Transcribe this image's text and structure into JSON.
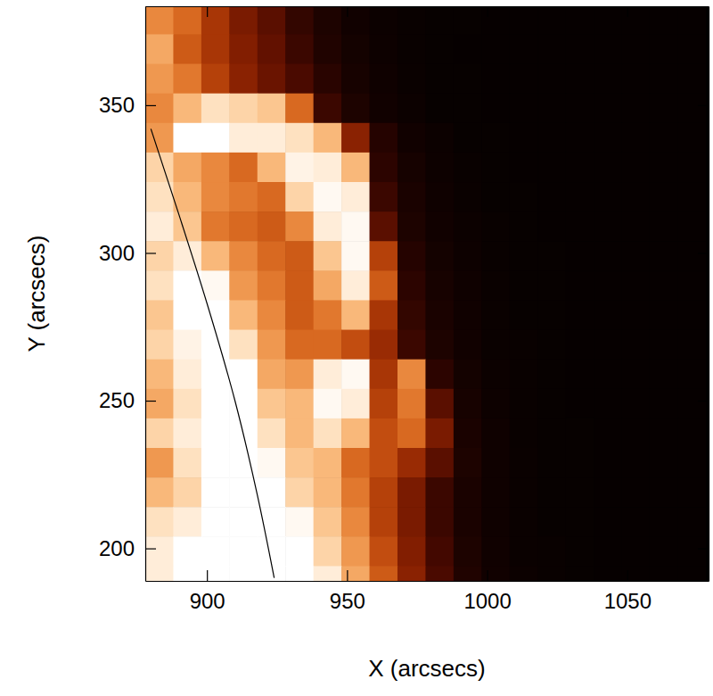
{
  "chart_data": {
    "type": "heatmap",
    "x_label": "X (arcsecs)",
    "y_label": "Y (arcsecs)",
    "xlim": [
      878,
      1079
    ],
    "ylim": [
      189,
      383.5
    ],
    "xticks": [
      900,
      950,
      1000,
      1050
    ],
    "yticks": [
      200,
      250,
      300,
      350
    ],
    "zlim": [
      0,
      255
    ],
    "x": [
      883,
      893,
      903,
      913,
      923,
      933,
      943,
      953,
      963,
      973,
      983,
      993,
      1003,
      1013,
      1023,
      1033,
      1043,
      1053,
      1063,
      1073
    ],
    "y": [
      379,
      369,
      359,
      349,
      339,
      329,
      319,
      309,
      299,
      289,
      279,
      269,
      259,
      249,
      239,
      229,
      219,
      209,
      199,
      189
    ],
    "z": [
      [
        170,
        150,
        110,
        80,
        60,
        35,
        20,
        12,
        8,
        6,
        5,
        5,
        4,
        4,
        4,
        4,
        4,
        4,
        4,
        4
      ],
      [
        190,
        140,
        110,
        85,
        65,
        40,
        22,
        14,
        9,
        6,
        5,
        4,
        4,
        4,
        4,
        4,
        4,
        4,
        4,
        4
      ],
      [
        180,
        160,
        120,
        90,
        70,
        50,
        28,
        16,
        10,
        7,
        5,
        5,
        4,
        4,
        4,
        4,
        4,
        4,
        4,
        4
      ],
      [
        170,
        200,
        230,
        220,
        210,
        150,
        40,
        20,
        12,
        8,
        5,
        5,
        4,
        4,
        4,
        4,
        4,
        4,
        4,
        4
      ],
      [
        180,
        255,
        255,
        240,
        240,
        230,
        200,
        90,
        25,
        12,
        8,
        5,
        5,
        4,
        4,
        4,
        4,
        4,
        4,
        4
      ],
      [
        220,
        190,
        170,
        150,
        200,
        245,
        240,
        200,
        30,
        15,
        9,
        6,
        5,
        4,
        4,
        4,
        4,
        4,
        4,
        4
      ],
      [
        230,
        200,
        170,
        160,
        150,
        220,
        250,
        240,
        40,
        18,
        10,
        7,
        5,
        5,
        4,
        4,
        4,
        4,
        4,
        4
      ],
      [
        240,
        210,
        160,
        150,
        140,
        170,
        240,
        250,
        60,
        20,
        12,
        8,
        6,
        5,
        4,
        4,
        4,
        4,
        4,
        4
      ],
      [
        220,
        240,
        200,
        170,
        150,
        140,
        210,
        250,
        120,
        25,
        14,
        9,
        6,
        5,
        5,
        4,
        4,
        4,
        4,
        4
      ],
      [
        230,
        255,
        250,
        180,
        160,
        140,
        190,
        240,
        140,
        30,
        16,
        10,
        7,
        5,
        5,
        4,
        4,
        4,
        4,
        4
      ],
      [
        210,
        255,
        255,
        200,
        170,
        140,
        160,
        200,
        110,
        35,
        18,
        11,
        7,
        5,
        5,
        4,
        4,
        4,
        4,
        4
      ],
      [
        220,
        245,
        255,
        230,
        180,
        150,
        150,
        130,
        100,
        40,
        20,
        12,
        7,
        6,
        5,
        4,
        4,
        4,
        4,
        4
      ],
      [
        200,
        240,
        255,
        255,
        190,
        180,
        240,
        250,
        110,
        170,
        30,
        14,
        8,
        6,
        5,
        4,
        4,
        4,
        4,
        4
      ],
      [
        190,
        230,
        255,
        255,
        210,
        200,
        250,
        240,
        120,
        160,
        60,
        16,
        9,
        6,
        5,
        4,
        4,
        4,
        4,
        4
      ],
      [
        220,
        240,
        255,
        255,
        230,
        200,
        230,
        200,
        130,
        150,
        80,
        18,
        10,
        6,
        5,
        5,
        4,
        4,
        4,
        4
      ],
      [
        180,
        230,
        255,
        255,
        250,
        210,
        200,
        150,
        130,
        100,
        60,
        20,
        10,
        7,
        5,
        5,
        4,
        4,
        4,
        4
      ],
      [
        200,
        220,
        255,
        255,
        255,
        220,
        200,
        160,
        120,
        80,
        40,
        18,
        10,
        7,
        5,
        5,
        4,
        4,
        4,
        4
      ],
      [
        230,
        240,
        255,
        255,
        255,
        250,
        210,
        170,
        120,
        80,
        40,
        18,
        10,
        7,
        5,
        5,
        4,
        4,
        4,
        4
      ],
      [
        240,
        255,
        255,
        255,
        255,
        255,
        220,
        180,
        130,
        85,
        45,
        20,
        11,
        7,
        6,
        5,
        4,
        4,
        4,
        4
      ],
      [
        240,
        255,
        255,
        255,
        255,
        255,
        240,
        190,
        140,
        90,
        50,
        22,
        12,
        8,
        6,
        5,
        4,
        4,
        4,
        4
      ]
    ],
    "limb": {
      "x": [
        880,
        890,
        900,
        910,
        918,
        924
      ],
      "y": [
        342,
        313,
        283,
        250,
        218,
        190
      ],
      "color": "#000000"
    }
  }
}
